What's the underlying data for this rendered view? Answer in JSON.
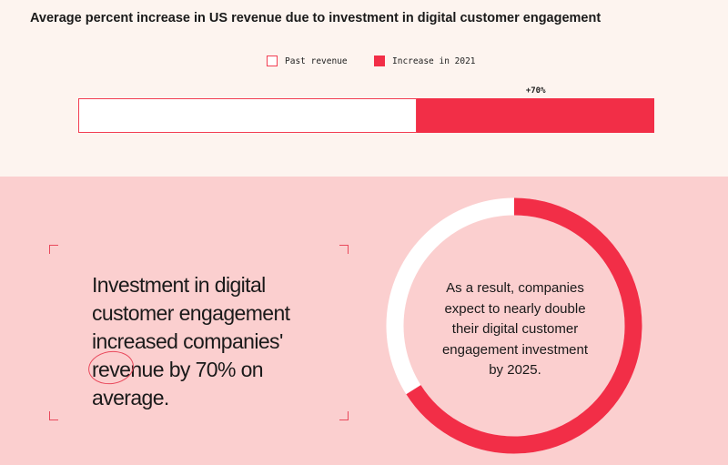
{
  "chart_data": {
    "type": "bar",
    "title": "Average percent increase in US revenue due to investment in digital customer engagement",
    "legend": [
      {
        "name": "Past revenue",
        "color": "#ffffff",
        "border": "#f23e52"
      },
      {
        "name": "Increase in 2021",
        "color": "#f22e47"
      }
    ],
    "series": [
      {
        "name": "Past revenue",
        "value": 100
      },
      {
        "name": "Increase in 2021",
        "value": 70
      }
    ],
    "increase_label": "+70%",
    "unit": "percent of past revenue",
    "stacked": true,
    "orientation": "horizontal"
  },
  "callout": {
    "lines": [
      "Investment in digital",
      "customer engagement",
      "increased companies'",
      "revenue by 70% on",
      "average."
    ]
  },
  "donut": {
    "filled_fraction": 0.66,
    "filled_color": "#f22e47",
    "remaining_color": "#ffffff",
    "lines": [
      "As a result, companies",
      "expect to nearly double",
      "their digital customer",
      "engagement investment",
      "by 2025."
    ]
  }
}
